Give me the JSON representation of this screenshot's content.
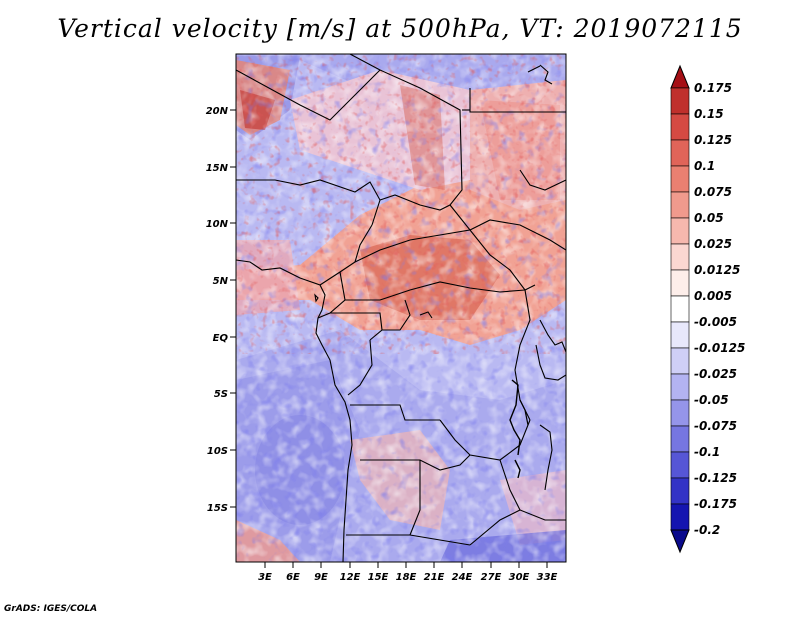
{
  "title": "Vertical velocity [m/s] at 500hPa, VT: 2019072115",
  "footer": "GrADS: IGES/COLA",
  "map": {
    "lat_labels": [
      "20N",
      "15N",
      "10N",
      "5N",
      "EQ",
      "5S",
      "10S",
      "15S"
    ],
    "lon_labels": [
      "3E",
      "6E",
      "9E",
      "12E",
      "15E",
      "18E",
      "21E",
      "24E",
      "27E",
      "30E",
      "33E"
    ]
  },
  "colorbar": {
    "levels": [
      "0.175",
      "0.15",
      "0.125",
      "0.1",
      "0.075",
      "0.05",
      "0.025",
      "0.0125",
      "0.005",
      "-0.005",
      "-0.0125",
      "-0.025",
      "-0.05",
      "-0.075",
      "-0.1",
      "-0.125",
      "-0.175",
      "-0.2"
    ],
    "colors": [
      "#a50f15",
      "#c0302c",
      "#d54a43",
      "#e06459",
      "#ea8071",
      "#f09a8d",
      "#f6b8ae",
      "#fbd7d1",
      "#fdeeea",
      "#ffffff",
      "#e8e8fb",
      "#cfcff6",
      "#b3b3f1",
      "#9595ea",
      "#7676e1",
      "#5656d6",
      "#3333c6",
      "#1515b0",
      "#0a0a8c"
    ]
  },
  "chart_data": {
    "type": "heatmap",
    "title": "Vertical velocity [m/s] at 500hPa, VT: 2019072115",
    "x_ticks": [
      "3E",
      "6E",
      "9E",
      "12E",
      "15E",
      "18E",
      "21E",
      "24E",
      "27E",
      "30E",
      "33E"
    ],
    "y_ticks": [
      "20N",
      "15N",
      "10N",
      "5N",
      "EQ",
      "5S",
      "10S",
      "15S"
    ],
    "xlim": [
      0,
      34
    ],
    "ylim": [
      -19.5,
      25
    ],
    "color_levels": [
      -0.2,
      -0.175,
      -0.125,
      -0.1,
      -0.075,
      -0.05,
      -0.025,
      -0.0125,
      -0.005,
      0.005,
      0.0125,
      0.025,
      0.05,
      0.075,
      0.1,
      0.125,
      0.15,
      0.175
    ]
  }
}
